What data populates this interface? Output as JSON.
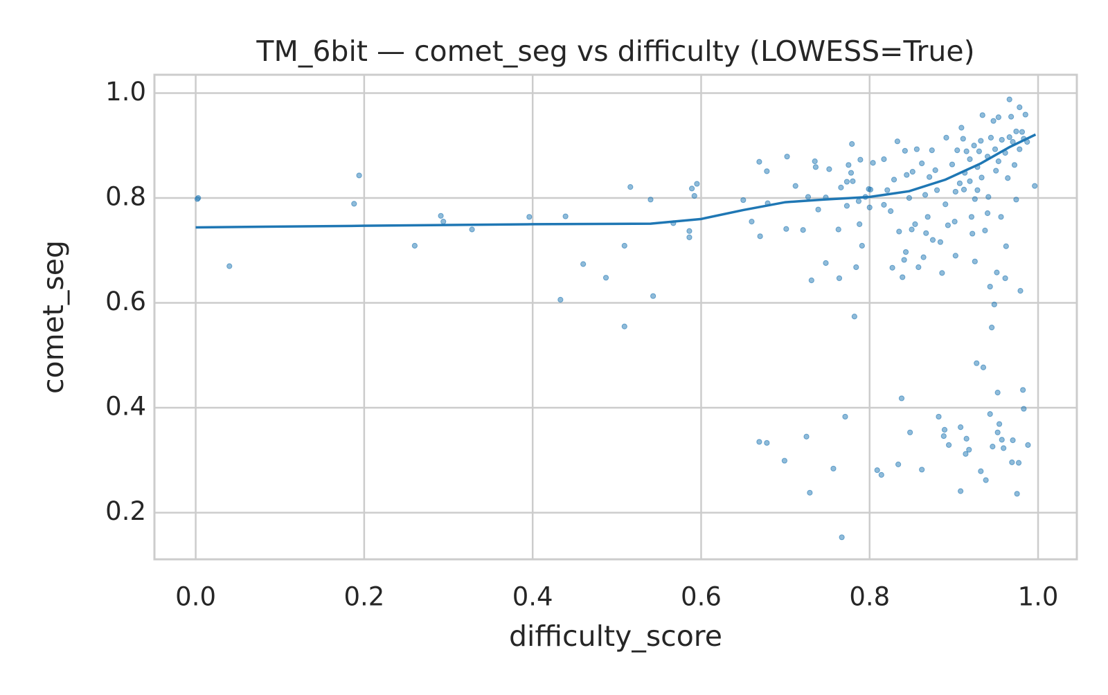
{
  "chart_data": {
    "type": "scatter",
    "title": "TM_6bit — comet_seg vs difficulty (LOWESS=True)",
    "x_label": "difficulty_score",
    "y_label": "comet_seg",
    "xlim": [
      -0.049,
      1.046
    ],
    "ylim": [
      0.111,
      1.035
    ],
    "xticks": [
      {
        "value": 0,
        "label": "0.0"
      },
      0.2,
      0.4,
      0.6,
      0.8,
      {
        "value": 1,
        "label": "1.0"
      }
    ],
    "yticks": [
      0.2,
      0.4,
      0.6,
      0.8,
      {
        "value": 1,
        "label": "1.0"
      }
    ],
    "grid": true,
    "series": [
      {
        "type": "scatter",
        "color": "#1f77b4",
        "x": [
          0.002,
          0.003,
          0.04,
          0.188,
          0.194,
          0.26,
          0.291,
          0.294,
          0.328,
          0.396,
          0.433,
          0.439,
          0.46,
          0.487,
          0.509,
          0.509,
          0.516,
          0.54,
          0.543,
          0.567,
          0.586,
          0.586,
          0.589,
          0.592,
          0.595,
          0.65,
          0.66,
          0.669,
          0.67,
          0.678,
          0.679,
          0.669,
          0.678,
          0.701,
          0.702,
          0.699,
          0.712,
          0.721,
          0.725,
          0.727,
          0.729,
          0.731,
          0.735,
          0.736,
          0.739,
          0.748,
          0.748,
          0.752,
          0.757,
          0.763,
          0.764,
          0.767,
          0.766,
          0.771,
          0.773,
          0.773,
          0.775,
          0.778,
          0.779,
          0.782,
          0.78,
          0.784,
          0.787,
          0.789,
          0.788,
          0.791,
          0.795,
          0.799,
          0.8,
          0.801,
          0.804,
          0.809,
          0.814,
          0.817,
          0.817,
          0.821,
          0.825,
          0.827,
          0.829,
          0.833,
          0.835,
          0.834,
          0.838,
          0.839,
          0.841,
          0.842,
          0.843,
          0.844,
          0.847,
          0.848,
          0.85,
          0.851,
          0.854,
          0.856,
          0.858,
          0.862,
          0.862,
          0.864,
          0.866,
          0.867,
          0.869,
          0.871,
          0.874,
          0.875,
          0.878,
          0.88,
          0.882,
          0.884,
          0.886,
          0.888,
          0.889,
          0.89,
          0.891,
          0.893,
          0.894,
          0.898,
          0.901,
          0.902,
          0.904,
          0.908,
          0.908,
          0.909,
          0.912,
          0.913,
          0.914,
          0.915,
          0.918,
          0.919,
          0.921,
          0.922,
          0.925,
          0.927,
          0.928,
          0.93,
          0.932,
          0.934,
          0.935,
          0.937,
          0.938,
          0.94,
          0.941,
          0.943,
          0.943,
          0.945,
          0.946,
          0.947,
          0.948,
          0.95,
          0.951,
          0.952,
          0.952,
          0.953,
          0.954,
          0.956,
          0.957,
          0.959,
          0.961,
          0.962,
          0.964,
          0.966,
          0.968,
          0.969,
          0.97,
          0.972,
          0.974,
          0.975,
          0.977,
          0.978,
          0.979,
          0.981,
          0.982,
          0.983,
          0.985,
          0.988,
          0.996,
          0.911,
          0.915,
          0.919,
          0.924,
          0.928,
          0.932,
          0.94,
          0.944,
          0.949,
          0.953,
          0.957,
          0.961,
          0.966,
          0.97,
          0.974,
          0.978,
          0.983,
          0.987,
          0.907,
          0.902,
          0.933,
          0.925
        ],
        "y": [
          0.798,
          0.8,
          0.67,
          0.789,
          0.843,
          0.709,
          0.766,
          0.755,
          0.74,
          0.764,
          0.606,
          0.765,
          0.674,
          0.648,
          0.709,
          0.555,
          0.821,
          0.797,
          0.613,
          0.752,
          0.737,
          0.725,
          0.818,
          0.804,
          0.827,
          0.796,
          0.755,
          0.869,
          0.727,
          0.851,
          0.79,
          0.335,
          0.333,
          0.741,
          0.879,
          0.299,
          0.823,
          0.739,
          0.345,
          0.802,
          0.238,
          0.643,
          0.87,
          0.859,
          0.778,
          0.676,
          0.801,
          0.855,
          0.284,
          0.74,
          0.647,
          0.153,
          0.82,
          0.383,
          0.831,
          0.785,
          0.863,
          0.848,
          0.903,
          0.574,
          0.832,
          0.668,
          0.794,
          0.873,
          0.75,
          0.709,
          0.802,
          0.817,
          0.782,
          0.816,
          0.867,
          0.281,
          0.272,
          0.874,
          0.787,
          0.815,
          0.775,
          0.667,
          0.835,
          0.908,
          0.736,
          0.292,
          0.418,
          0.649,
          0.682,
          0.89,
          0.697,
          0.844,
          0.8,
          0.353,
          0.74,
          0.85,
          0.75,
          0.893,
          0.668,
          0.282,
          0.866,
          0.687,
          0.806,
          0.733,
          0.764,
          0.84,
          0.891,
          0.72,
          0.853,
          0.815,
          0.383,
          0.716,
          0.657,
          0.346,
          0.358,
          0.788,
          0.915,
          0.748,
          0.329,
          0.864,
          0.755,
          0.69,
          0.891,
          0.241,
          0.363,
          0.934,
          0.816,
          0.848,
          0.312,
          0.341,
          0.32,
          0.832,
          0.764,
          0.732,
          0.679,
          0.485,
          0.815,
          0.889,
          0.279,
          0.958,
          0.477,
          0.738,
          0.262,
          0.771,
          0.802,
          0.631,
          0.388,
          0.553,
          0.326,
          0.947,
          0.597,
          0.852,
          0.658,
          0.429,
          0.353,
          0.954,
          0.369,
          0.764,
          0.339,
          0.323,
          0.647,
          0.708,
          0.838,
          0.988,
          0.955,
          0.296,
          0.338,
          0.863,
          0.797,
          0.236,
          0.295,
          0.973,
          0.623,
          0.926,
          0.434,
          0.398,
          0.959,
          0.329,
          0.823,
          0.913,
          0.889,
          0.874,
          0.9,
          0.859,
          0.909,
          0.879,
          0.915,
          0.893,
          0.87,
          0.911,
          0.886,
          0.916,
          0.907,
          0.927,
          0.893,
          0.913,
          0.907,
          0.828,
          0.812,
          0.839,
          0.798
        ]
      },
      {
        "type": "line",
        "color": "#1f77b4",
        "x": [
          0,
          0.198,
          0.4,
          0.54,
          0.6,
          0.65,
          0.7,
          0.746,
          0.8,
          0.847,
          0.89,
          0.932,
          0.966,
          0.997
        ],
        "y": [
          0.744,
          0.747,
          0.75,
          0.751,
          0.76,
          0.777,
          0.792,
          0.797,
          0.802,
          0.813,
          0.835,
          0.866,
          0.897,
          0.921
        ]
      }
    ]
  }
}
